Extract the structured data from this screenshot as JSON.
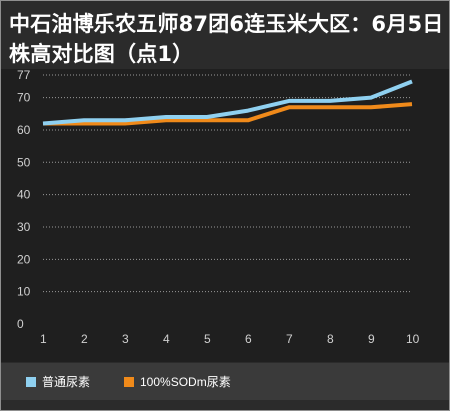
{
  "title": "中石油博乐农五师87团6连玉米大区：6月5日株高对比图（点1）",
  "colors": {
    "background": "#2b2b2b",
    "plot_background": "#1f1f1f",
    "grid": "#9a9a9a",
    "series_1": "#8fd0f0",
    "series_2": "#f08a1a",
    "legend_bar": "#3a3a3a"
  },
  "chart_data": {
    "type": "line",
    "title": "中石油博乐农五师87团6连玉米大区：6月5日株高对比图（点1）",
    "xlabel": "",
    "ylabel": "",
    "x": [
      "1",
      "2",
      "3",
      "4",
      "5",
      "6",
      "7",
      "8",
      "9",
      "10"
    ],
    "y_ticks": [
      0,
      10,
      20,
      30,
      40,
      50,
      60,
      70,
      77
    ],
    "ylim": [
      0,
      77
    ],
    "grid": true,
    "legend_position": "bottom",
    "series": [
      {
        "name": "普通尿素",
        "values": [
          62,
          63,
          63,
          64,
          64,
          66,
          69,
          69,
          70,
          75
        ]
      },
      {
        "name": "100%SODm尿素",
        "values": [
          62,
          62,
          62,
          63,
          63,
          63,
          67,
          67,
          67,
          68
        ]
      }
    ]
  }
}
